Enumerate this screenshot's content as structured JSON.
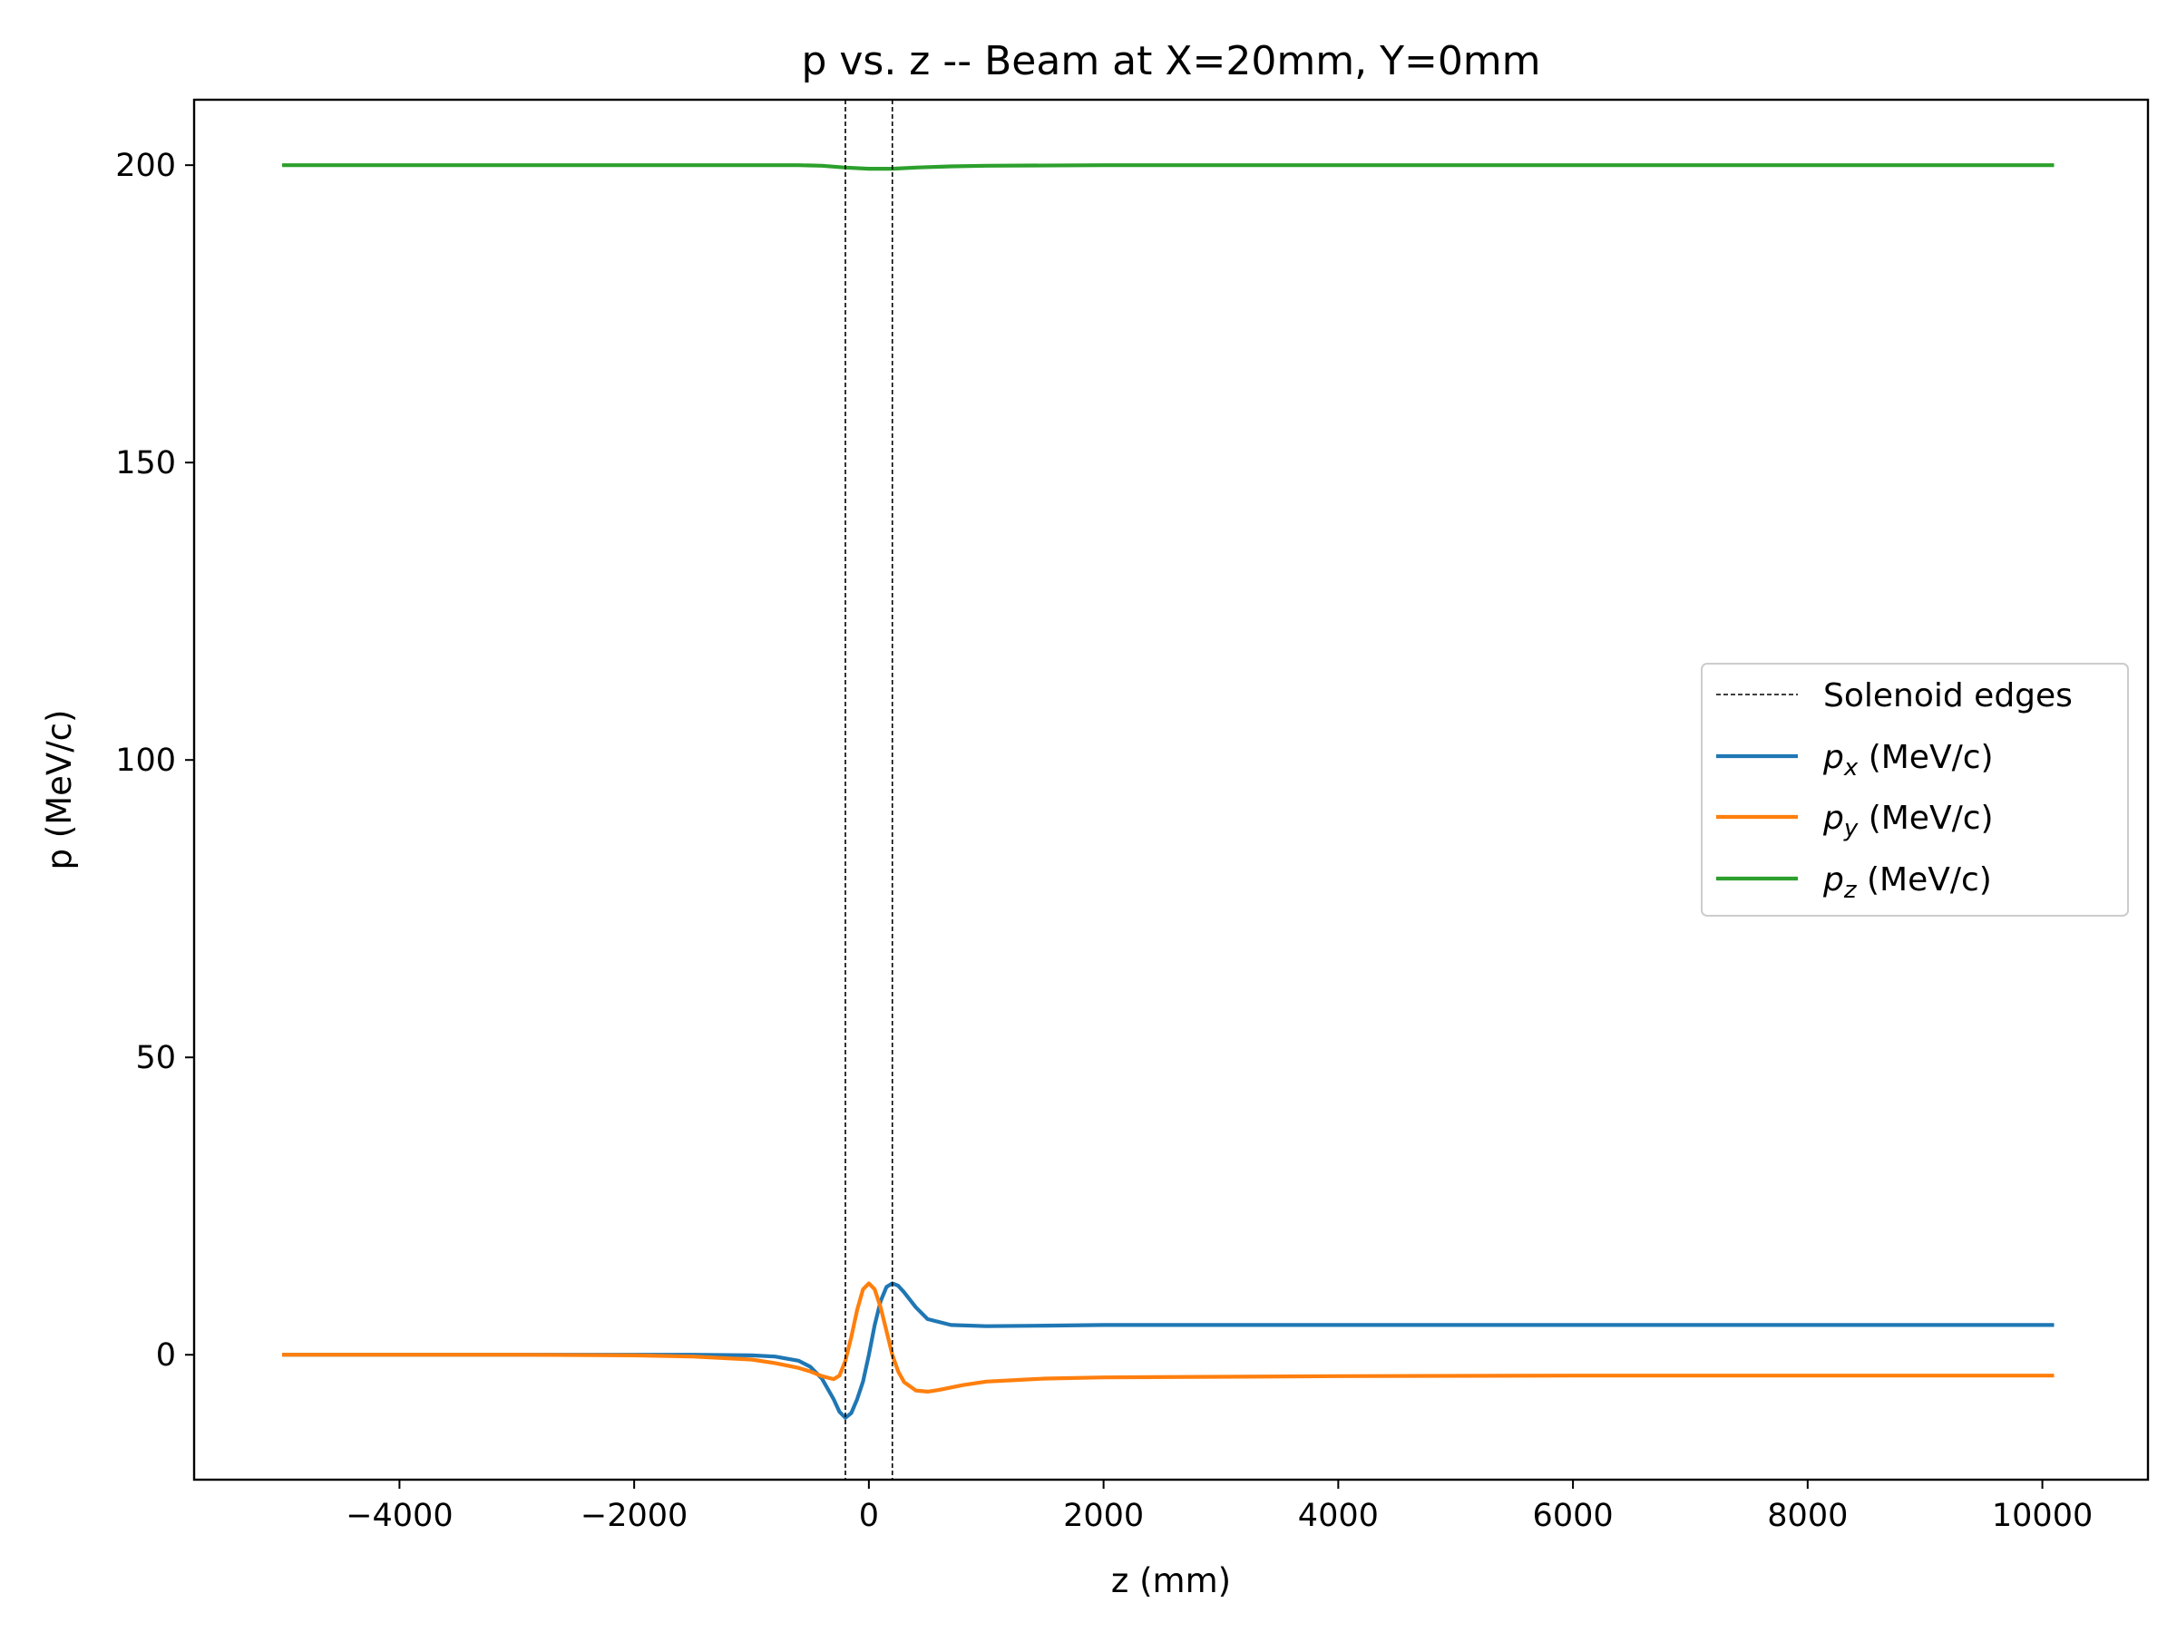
{
  "chart_data": {
    "type": "line",
    "title": "p vs. z -- Beam at X=20mm, Y=0mm",
    "xlabel": "z (mm)",
    "ylabel": "p (MeV/c)",
    "xlim": [
      -5750,
      10900
    ],
    "ylim": [
      -21,
      211
    ],
    "xticks": [
      -4000,
      -2000,
      0,
      2000,
      4000,
      6000,
      8000,
      10000
    ],
    "xtick_labels": [
      "−4000",
      "−2000",
      "0",
      "2000",
      "4000",
      "6000",
      "8000",
      "10000"
    ],
    "yticks": [
      0,
      50,
      100,
      150,
      200
    ],
    "ytick_labels": [
      "0",
      "50",
      "100",
      "150",
      "200"
    ],
    "grid": false,
    "legend_position": "center-right",
    "vlines": {
      "name": "Solenoid edges",
      "x": [
        -200,
        200
      ],
      "color": "#000000",
      "style": "dashed"
    },
    "series": [
      {
        "name": "p_x (MeV/c)",
        "label_base": "p",
        "label_sub": "x",
        "label_rest": " (MeV/c)",
        "color": "#1f77b4",
        "x": [
          -5000,
          -3000,
          -1500,
          -1000,
          -800,
          -600,
          -500,
          -400,
          -300,
          -250,
          -200,
          -150,
          -100,
          -50,
          0,
          50,
          100,
          150,
          200,
          250,
          300,
          400,
          500,
          700,
          1000,
          1500,
          2000,
          4000,
          6000,
          8000,
          10100
        ],
        "values": [
          0,
          0,
          0,
          -0.1,
          -0.3,
          -1.0,
          -2.0,
          -4.0,
          -7.5,
          -9.6,
          -10.6,
          -9.8,
          -7.5,
          -4.5,
          0,
          5.0,
          9.0,
          11.4,
          12.0,
          11.6,
          10.5,
          8.0,
          6.0,
          5.0,
          4.8,
          4.9,
          5.0,
          5.0,
          5.0,
          5.0,
          5.0
        ]
      },
      {
        "name": "p_y (MeV/c)",
        "label_base": "p",
        "label_sub": "y",
        "label_rest": " (MeV/c)",
        "color": "#ff7f0e",
        "x": [
          -5000,
          -3000,
          -2000,
          -1500,
          -1000,
          -800,
          -600,
          -500,
          -400,
          -300,
          -250,
          -200,
          -150,
          -100,
          -50,
          0,
          50,
          100,
          150,
          200,
          250,
          300,
          400,
          500,
          600,
          800,
          1000,
          1500,
          2000,
          4000,
          6000,
          8000,
          10100
        ],
        "values": [
          0,
          0,
          -0.1,
          -0.3,
          -0.8,
          -1.4,
          -2.2,
          -2.8,
          -3.6,
          -4.1,
          -3.5,
          -1.0,
          3.0,
          7.5,
          11.0,
          12.0,
          11.0,
          8.0,
          4.0,
          0.0,
          -2.8,
          -4.6,
          -6.0,
          -6.2,
          -5.9,
          -5.1,
          -4.5,
          -4.0,
          -3.8,
          -3.6,
          -3.5,
          -3.5,
          -3.5
        ]
      },
      {
        "name": "p_z (MeV/c)",
        "label_base": "p",
        "label_sub": "z",
        "label_rest": " (MeV/c)",
        "color": "#2ca02c",
        "x": [
          -5000,
          -1000,
          -600,
          -400,
          -200,
          0,
          200,
          400,
          700,
          1000,
          2000,
          10100
        ],
        "values": [
          200,
          200,
          200,
          199.9,
          199.6,
          199.4,
          199.4,
          199.6,
          199.8,
          199.9,
          200,
          200
        ]
      }
    ]
  }
}
